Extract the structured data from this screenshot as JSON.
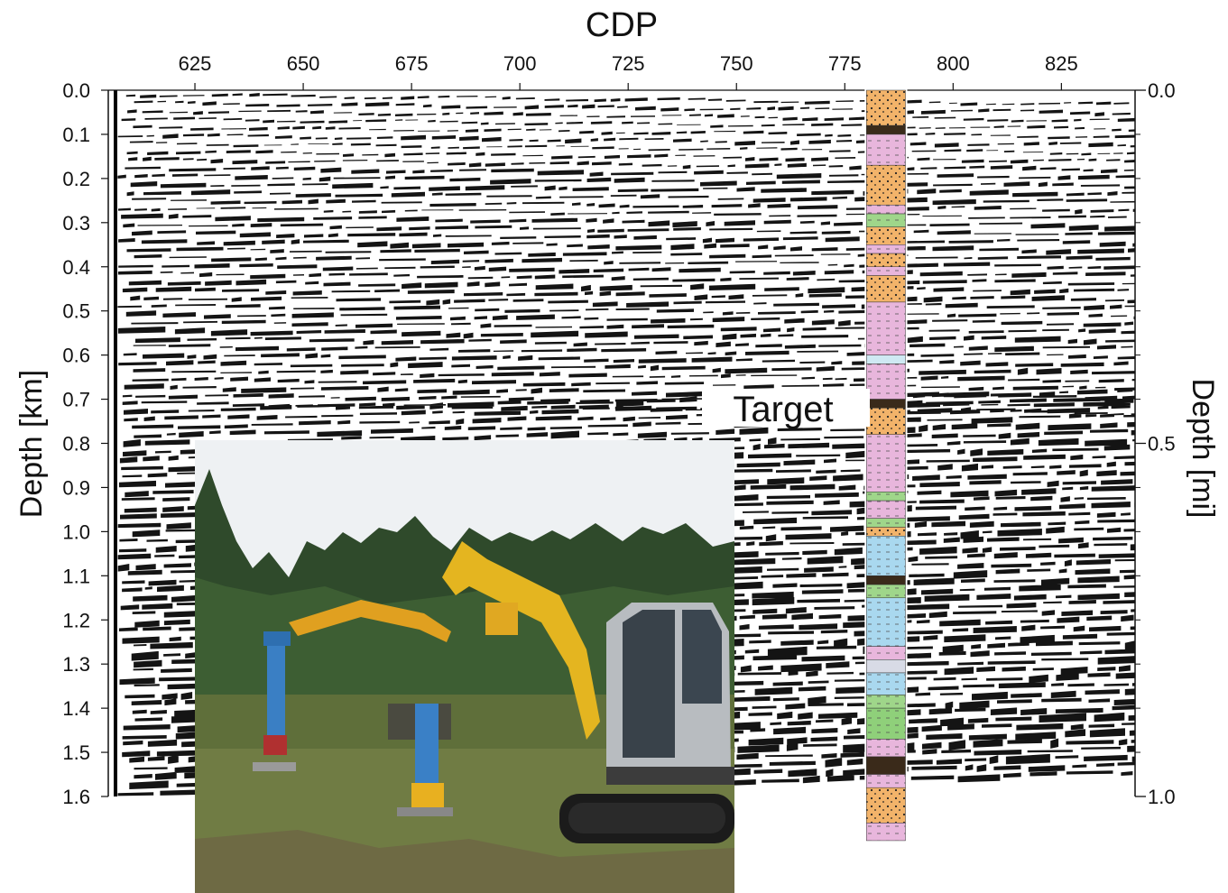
{
  "chart_data": {
    "type": "seismic-section",
    "title": "",
    "xlabel": "CDP",
    "ylabel": "Depth [km]",
    "y2label": "Depth [mi]",
    "xlim": [
      605,
      842
    ],
    "ylim": [
      0.0,
      1.6
    ],
    "y2lim": [
      0.0,
      1.0
    ],
    "x_ticks": [
      625,
      650,
      675,
      700,
      725,
      750,
      775,
      800,
      825
    ],
    "x_tick_labels": [
      "625",
      "650",
      "675",
      "700",
      "725",
      "750",
      "775",
      "800",
      "825"
    ],
    "y_ticks": [
      0.0,
      0.1,
      0.2,
      0.3,
      0.4,
      0.5,
      0.6,
      0.7,
      0.8,
      0.9,
      1.0,
      1.1,
      1.2,
      1.3,
      1.4,
      1.5,
      1.6
    ],
    "y_tick_labels": [
      "0.0",
      "0.1",
      "0.2",
      "0.3",
      "0.4",
      "0.5",
      "0.6",
      "0.7",
      "0.8",
      "0.9",
      "1.0",
      "1.1",
      "1.2",
      "1.3",
      "1.4",
      "1.5",
      "1.6"
    ],
    "y2_ticks": [
      0.0,
      0.5,
      1.0
    ],
    "y2_tick_labels": [
      "0.0",
      "0.5",
      "1.0"
    ],
    "annotations": [
      {
        "text": "Target",
        "cdp": 753,
        "depth_km": 0.72
      }
    ],
    "well_log": {
      "cdp_range": [
        780,
        789
      ],
      "depth_range_km": [
        0.0,
        1.7
      ],
      "layers": [
        {
          "top": 0.0,
          "bottom": 0.08,
          "lith": "sand"
        },
        {
          "top": 0.08,
          "bottom": 0.1,
          "lith": "thin"
        },
        {
          "top": 0.1,
          "bottom": 0.17,
          "lith": "clay"
        },
        {
          "top": 0.17,
          "bottom": 0.26,
          "lith": "sand"
        },
        {
          "top": 0.26,
          "bottom": 0.28,
          "lith": "clay"
        },
        {
          "top": 0.28,
          "bottom": 0.31,
          "lith": "green"
        },
        {
          "top": 0.31,
          "bottom": 0.35,
          "lith": "sand"
        },
        {
          "top": 0.35,
          "bottom": 0.37,
          "lith": "clay"
        },
        {
          "top": 0.37,
          "bottom": 0.4,
          "lith": "sand"
        },
        {
          "top": 0.4,
          "bottom": 0.42,
          "lith": "clay"
        },
        {
          "top": 0.42,
          "bottom": 0.48,
          "lith": "sand"
        },
        {
          "top": 0.48,
          "bottom": 0.6,
          "lith": "clay"
        },
        {
          "top": 0.6,
          "bottom": 0.62,
          "lith": "lightblue"
        },
        {
          "top": 0.62,
          "bottom": 0.7,
          "lith": "clay"
        },
        {
          "top": 0.7,
          "bottom": 0.72,
          "lith": "thin"
        },
        {
          "top": 0.72,
          "bottom": 0.78,
          "lith": "sand"
        },
        {
          "top": 0.78,
          "bottom": 0.91,
          "lith": "clay"
        },
        {
          "top": 0.91,
          "bottom": 0.93,
          "lith": "green"
        },
        {
          "top": 0.93,
          "bottom": 0.97,
          "lith": "clay"
        },
        {
          "top": 0.97,
          "bottom": 0.99,
          "lith": "green"
        },
        {
          "top": 0.99,
          "bottom": 1.01,
          "lith": "sand"
        },
        {
          "top": 1.01,
          "bottom": 1.1,
          "lith": "blue"
        },
        {
          "top": 1.1,
          "bottom": 1.12,
          "lith": "thin"
        },
        {
          "top": 1.12,
          "bottom": 1.15,
          "lith": "green"
        },
        {
          "top": 1.15,
          "bottom": 1.26,
          "lith": "blue"
        },
        {
          "top": 1.26,
          "bottom": 1.29,
          "lith": "clay"
        },
        {
          "top": 1.29,
          "bottom": 1.32,
          "lith": "grey"
        },
        {
          "top": 1.32,
          "bottom": 1.37,
          "lith": "blue"
        },
        {
          "top": 1.37,
          "bottom": 1.4,
          "lith": "green"
        },
        {
          "top": 1.4,
          "bottom": 1.47,
          "lith": "green2"
        },
        {
          "top": 1.47,
          "bottom": 1.51,
          "lith": "clay"
        },
        {
          "top": 1.51,
          "bottom": 1.55,
          "lith": "thin"
        },
        {
          "top": 1.55,
          "bottom": 1.58,
          "lith": "clay"
        },
        {
          "top": 1.58,
          "bottom": 1.66,
          "lith": "sand"
        },
        {
          "top": 1.66,
          "bottom": 1.7,
          "lith": "clay"
        }
      ]
    }
  },
  "colors": {
    "sand": "#f2b36a",
    "clay": "#e8b6dc",
    "green": "#9fd68a",
    "green2": "#8fd07a",
    "blue": "#a9d8ef",
    "lightblue": "#cfe9f3",
    "grey": "#d8dbe6",
    "thin": "#3a2a1a",
    "wiggle": "#000000",
    "frame": "#111111"
  },
  "photo": {
    "description_icon": "excavator-photo"
  }
}
